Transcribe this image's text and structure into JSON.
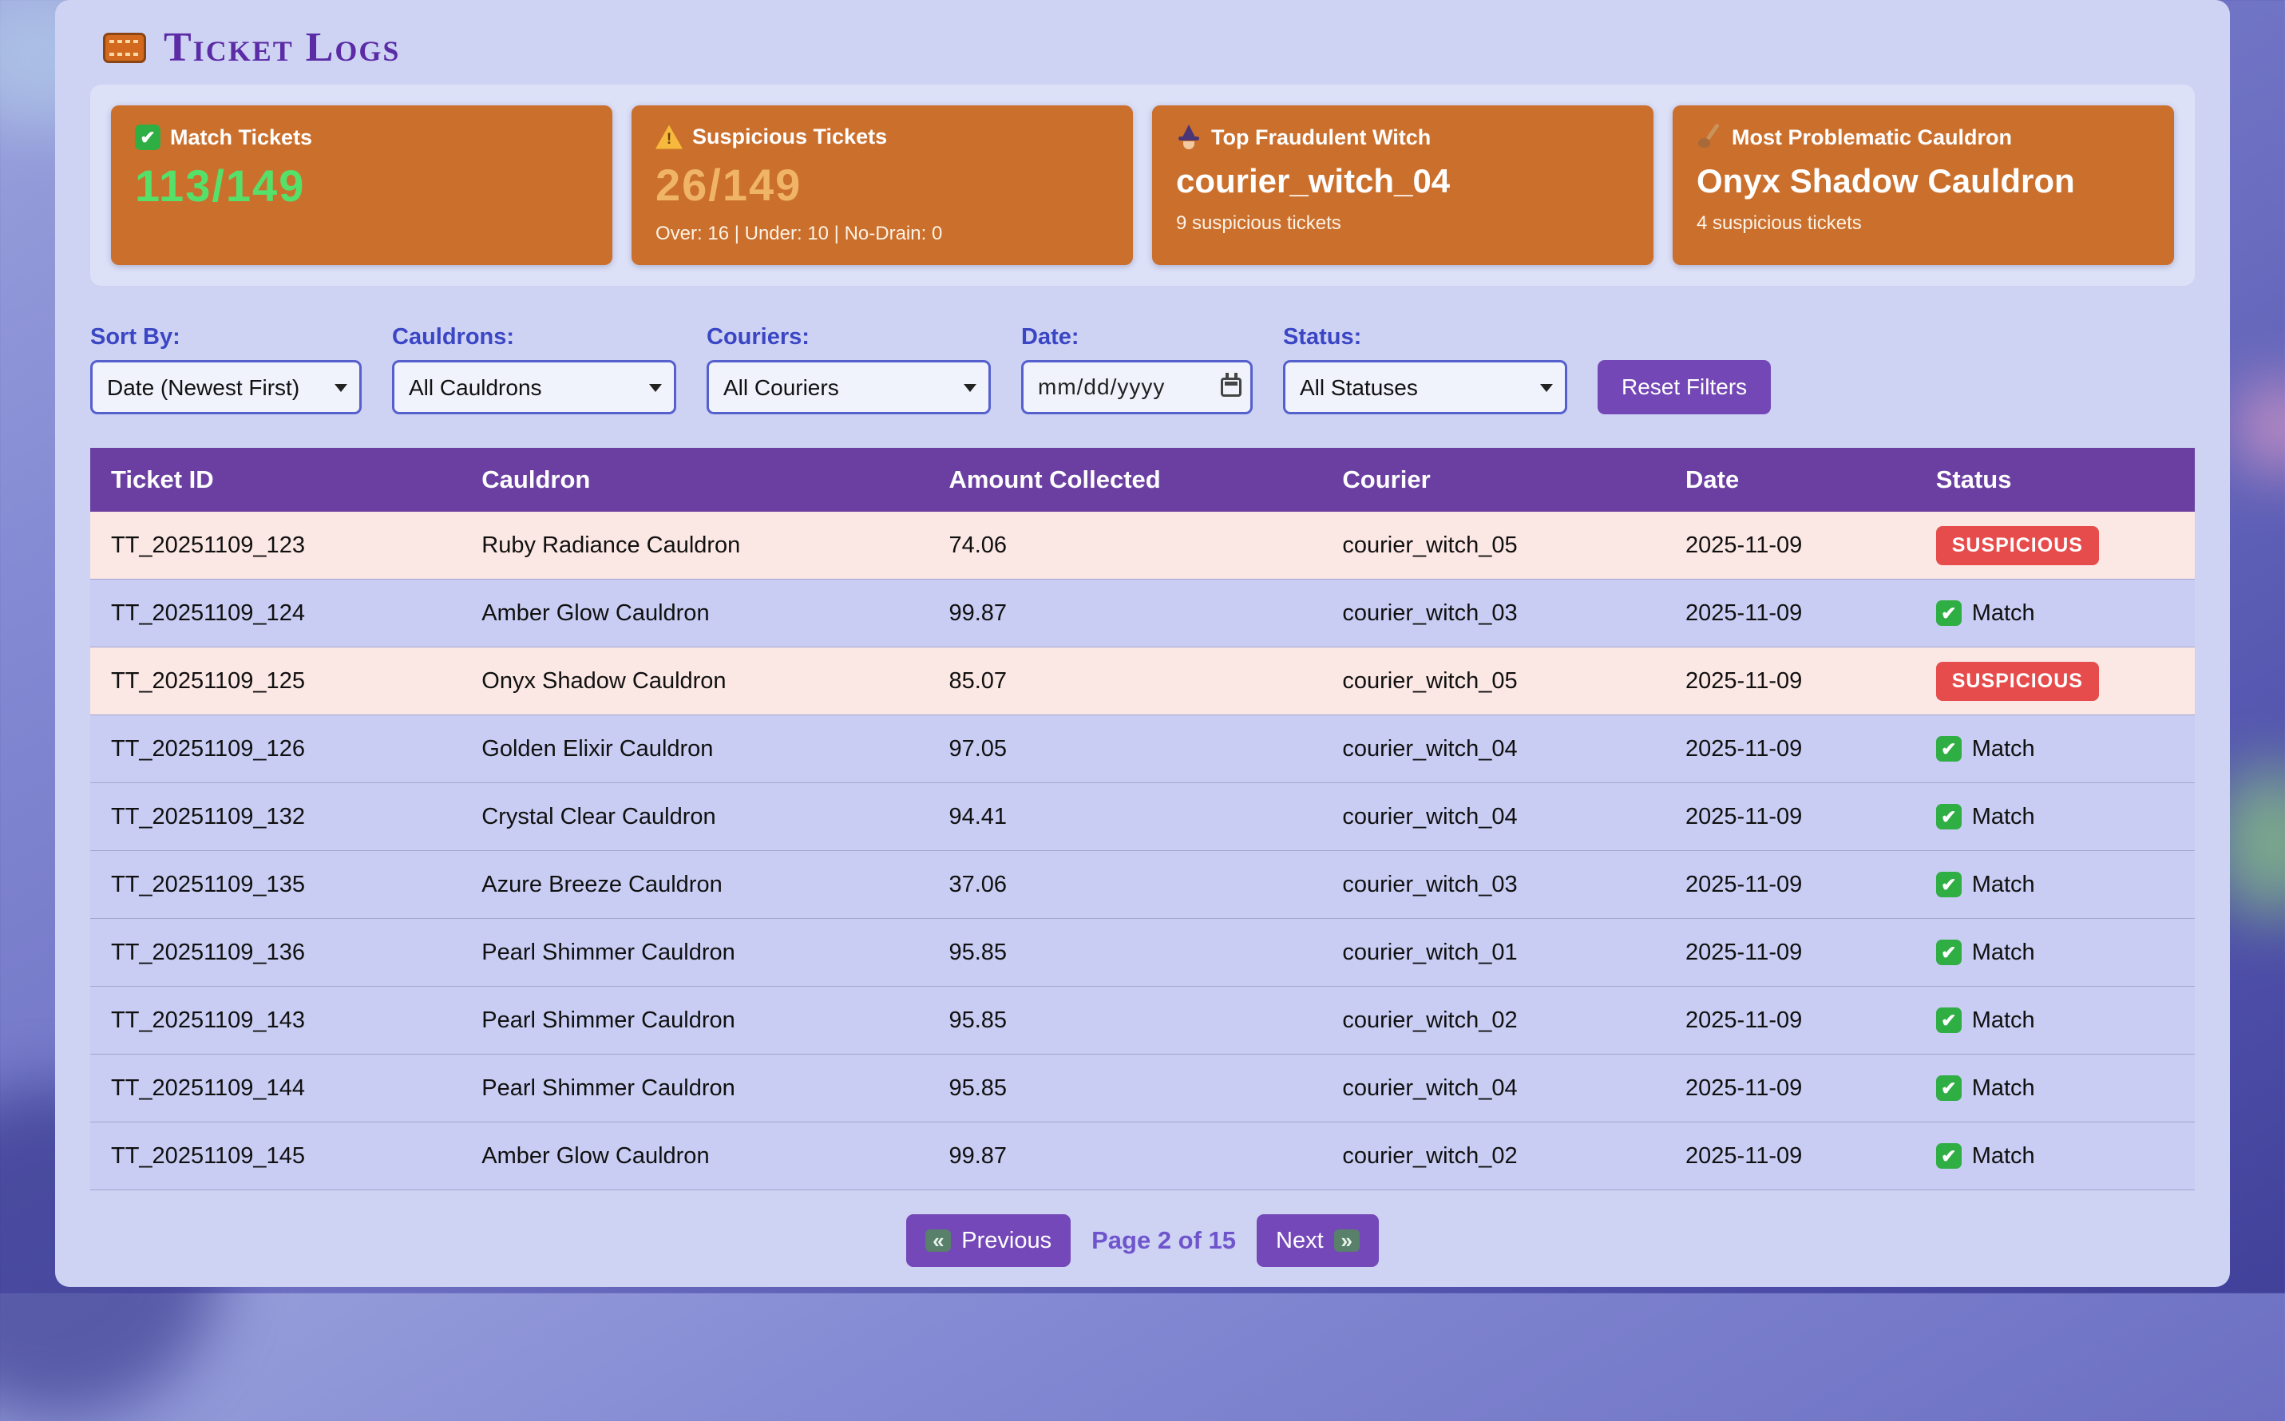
{
  "header": {
    "icon": "ticket-icon",
    "title": "Ticket Logs"
  },
  "stats": {
    "cards": [
      {
        "icon": "check-icon",
        "label": "Match Tickets",
        "value": "113/149",
        "sub": ""
      },
      {
        "icon": "warning-icon",
        "label": "Suspicious Tickets",
        "value": "26/149",
        "sub": "Over: 16 | Under: 10 | No-Drain: 0"
      },
      {
        "icon": "witch-icon",
        "label": "Top Fraudulent Witch",
        "value": "courier_witch_04",
        "sub": "9 suspicious tickets"
      },
      {
        "icon": "ladle-icon",
        "label": "Most Problematic Cauldron",
        "value": "Onyx Shadow Cauldron",
        "sub": "4 suspicious tickets"
      }
    ]
  },
  "filters": {
    "sort": {
      "label": "Sort By:",
      "value": "Date (Newest First)"
    },
    "cauldrons": {
      "label": "Cauldrons:",
      "value": "All Cauldrons"
    },
    "couriers": {
      "label": "Couriers:",
      "value": "All Couriers"
    },
    "date": {
      "label": "Date:",
      "placeholder": "mm/dd/yyyy",
      "icon": "calendar-icon"
    },
    "status": {
      "label": "Status:",
      "value": "All Statuses"
    },
    "reset_label": "Reset Filters"
  },
  "table": {
    "columns": [
      "Ticket ID",
      "Cauldron",
      "Amount Collected",
      "Courier",
      "Date",
      "Status"
    ],
    "rows": [
      {
        "ticket_id": "TT_20251109_123",
        "cauldron": "Ruby Radiance Cauldron",
        "amount": "74.06",
        "courier": "courier_witch_05",
        "date": "2025-11-09",
        "status_type": "suspicious",
        "status_label": "SUSPICIOUS"
      },
      {
        "ticket_id": "TT_20251109_124",
        "cauldron": "Amber Glow Cauldron",
        "amount": "99.87",
        "courier": "courier_witch_03",
        "date": "2025-11-09",
        "status_type": "match",
        "status_label": "Match"
      },
      {
        "ticket_id": "TT_20251109_125",
        "cauldron": "Onyx Shadow Cauldron",
        "amount": "85.07",
        "courier": "courier_witch_05",
        "date": "2025-11-09",
        "status_type": "suspicious",
        "status_label": "SUSPICIOUS"
      },
      {
        "ticket_id": "TT_20251109_126",
        "cauldron": "Golden Elixir Cauldron",
        "amount": "97.05",
        "courier": "courier_witch_04",
        "date": "2025-11-09",
        "status_type": "match",
        "status_label": "Match"
      },
      {
        "ticket_id": "TT_20251109_132",
        "cauldron": "Crystal Clear Cauldron",
        "amount": "94.41",
        "courier": "courier_witch_04",
        "date": "2025-11-09",
        "status_type": "match",
        "status_label": "Match"
      },
      {
        "ticket_id": "TT_20251109_135",
        "cauldron": "Azure Breeze Cauldron",
        "amount": "37.06",
        "courier": "courier_witch_03",
        "date": "2025-11-09",
        "status_type": "match",
        "status_label": "Match"
      },
      {
        "ticket_id": "TT_20251109_136",
        "cauldron": "Pearl Shimmer Cauldron",
        "amount": "95.85",
        "courier": "courier_witch_01",
        "date": "2025-11-09",
        "status_type": "match",
        "status_label": "Match"
      },
      {
        "ticket_id": "TT_20251109_143",
        "cauldron": "Pearl Shimmer Cauldron",
        "amount": "95.85",
        "courier": "courier_witch_02",
        "date": "2025-11-09",
        "status_type": "match",
        "status_label": "Match"
      },
      {
        "ticket_id": "TT_20251109_144",
        "cauldron": "Pearl Shimmer Cauldron",
        "amount": "95.85",
        "courier": "courier_witch_04",
        "date": "2025-11-09",
        "status_type": "match",
        "status_label": "Match"
      },
      {
        "ticket_id": "TT_20251109_145",
        "cauldron": "Amber Glow Cauldron",
        "amount": "99.87",
        "courier": "courier_witch_02",
        "date": "2025-11-09",
        "status_type": "match",
        "status_label": "Match"
      }
    ]
  },
  "pagination": {
    "previous_label": "Previous",
    "previous_icon": "rewind-icon",
    "page_indicator": "Page 2 of 15",
    "next_label": "Next",
    "next_icon": "fast-forward-icon"
  },
  "colors": {
    "card_background": "#cb6f2c",
    "match_green": "#55e06a",
    "suspicious_amber": "#f0b468",
    "table_header_purple": "#6b3fa1",
    "badge_red": "#e74c4c",
    "button_purple": "#7448b8",
    "container_lavender": "#ced3f4",
    "suspicious_row_pink": "#fbe7e4"
  }
}
